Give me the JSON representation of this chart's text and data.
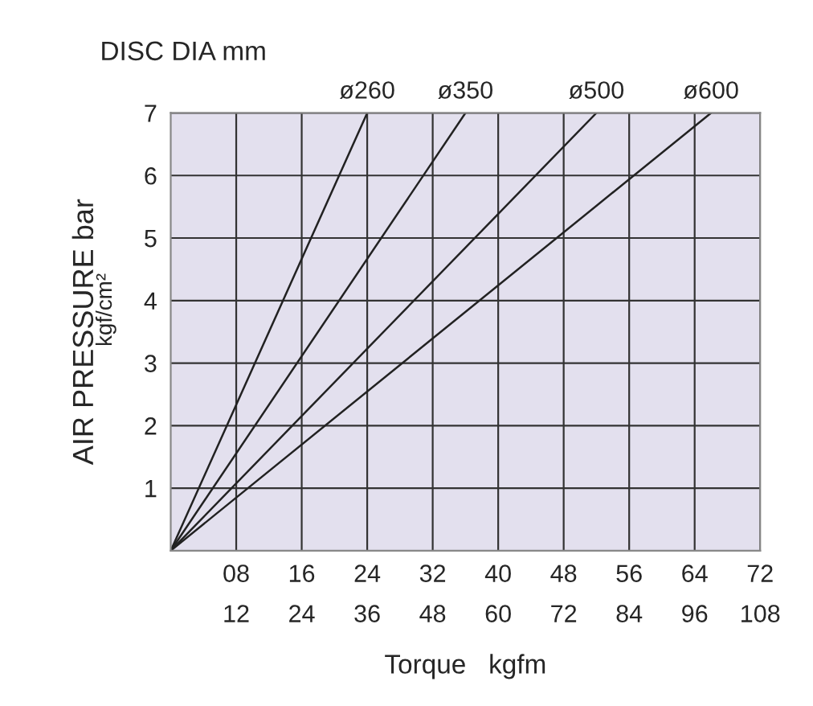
{
  "chart_data": {
    "type": "line",
    "title": "DISC DIA mm",
    "xlabel": "Torque   kgfm",
    "ylabel": "AIR PRESSURE bar",
    "annotations": [
      "kgf/cm²"
    ],
    "xlim": [
      0,
      72
    ],
    "xticks": [
      {
        "value": 8,
        "label": "08"
      },
      16,
      24,
      32,
      40,
      48,
      56,
      64,
      72
    ],
    "x2lim": [
      0,
      108
    ],
    "x2ticks": [
      12,
      24,
      36,
      48,
      60,
      72,
      84,
      96,
      108
    ],
    "ylim": [
      0,
      7
    ],
    "yticks": [
      1,
      2,
      3,
      4,
      5,
      6,
      7
    ],
    "grid": true,
    "marker": "none",
    "line_style": "solid",
    "series": [
      {
        "name": "ø260",
        "color": "#222222",
        "x": [
          0,
          24
        ],
        "values": [
          0,
          7
        ]
      },
      {
        "name": "ø350",
        "color": "#222222",
        "x": [
          0,
          36
        ],
        "values": [
          0,
          7
        ]
      },
      {
        "name": "ø500",
        "color": "#222222",
        "x": [
          0,
          52
        ],
        "values": [
          0,
          7
        ]
      },
      {
        "name": "ø600",
        "color": "#222222",
        "x": [
          0,
          66
        ],
        "values": [
          0,
          7
        ]
      }
    ]
  }
}
